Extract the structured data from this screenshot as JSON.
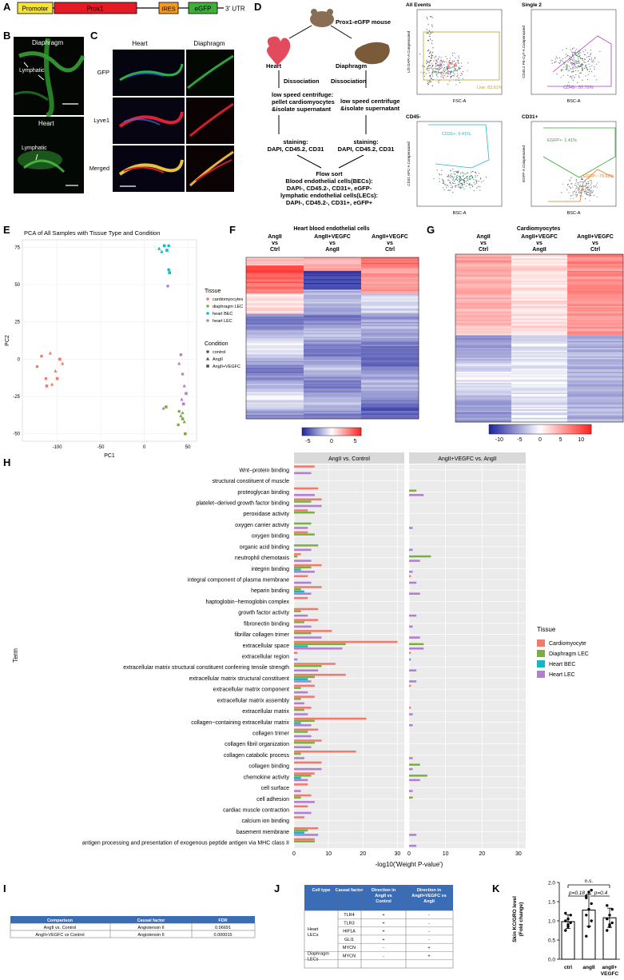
{
  "panels": {
    "A": "A",
    "B": "B",
    "C": "C",
    "D": "D",
    "E": "E",
    "F": "F",
    "G": "G",
    "H": "H",
    "I": "I",
    "J": "J",
    "K": "K"
  },
  "construct": {
    "promoter": "Promoter",
    "prox1": "Prox1",
    "ires": "IRES",
    "egfp": "eGFP",
    "utr": "3' UTR"
  },
  "panel_b": {
    "top_label": "Diaphragm",
    "top_annotation": "Lymphatic",
    "bottom_label": "Heart",
    "bottom_annotation": "Lymphatic"
  },
  "panel_c": {
    "col_heart": "Heart",
    "col_diaphragm": "Diaphragm",
    "rows": [
      "GFP",
      "Lyve1",
      "Merged"
    ]
  },
  "panel_d": {
    "mouse": "Prox1-eGFP mouse",
    "heart": "Heart",
    "diaphragm": "Diaphragm",
    "dissociation_left": "Dissociation",
    "dissociation_right": "Dissociation",
    "centrifuge_left": [
      "low speed centrifuge:",
      "pellet cardiomyocytes",
      "&isolate supernatant"
    ],
    "centrifuge_right": [
      "low speed centrifuge",
      "&isolate supernatant"
    ],
    "staining_left": [
      "staining:",
      "DAPI, CD45.2, CD31"
    ],
    "staining_right": [
      "staining:",
      "DAPI, CD45.2, CD31"
    ],
    "flow_sort": [
      "Flow sort",
      "Blood endothelial cells(BECs):",
      "DAPI-, CD45.2-, CD31+, eGFP-",
      "lymphatic endothelial cells(LECs):",
      "DAPI-, CD45.2-, CD31+, eGFP+"
    ],
    "facs": [
      {
        "title": "All Events",
        "gate": "Live: 82.61%",
        "xlabel": "FSC-A",
        "ylabel": "L/D DAPI-A Compensated"
      },
      {
        "title": "Single 2",
        "gate": "CD45-: 57.72%",
        "xlabel": "BSC-A",
        "ylabel": "CD45.2 PE-Cy7-A Compensated"
      },
      {
        "title": "CD45-",
        "gate": "CD31+: 9.41%",
        "xlabel": "BSC-A",
        "ylabel": "CD31 APC-A Compensated"
      },
      {
        "title": "CD31+",
        "gate": "EGFP+: 1.41%",
        "gate2": "EGFP-: 73.60%",
        "xlabel": "BSC-A",
        "ylabel": "EGFP-A Compensated"
      }
    ]
  },
  "panel_e": {
    "title": "PCA of All Samples with Tissue Type and Condition",
    "legend_tissue_title": "Tissue",
    "legend_condition_title": "Condition"
  },
  "panel_f": {
    "title": "Heart blood endothelial cells",
    "columns": [
      [
        "AngII",
        "vs",
        "Ctrl"
      ],
      [
        "AngII+VEGFC",
        "vs",
        "AngII"
      ],
      [
        "AngII+VEGFC",
        "vs",
        "Ctrl"
      ]
    ],
    "colorbar_ticks": [
      "-5",
      "0",
      "5"
    ]
  },
  "panel_g": {
    "title": "Cardiomyocytes",
    "columns": [
      [
        "AngII",
        "vs",
        "Ctrl"
      ],
      [
        "AngII+VEGFC",
        "vs",
        "AngII"
      ],
      [
        "AngII+VEGFC",
        "vs",
        "Ctrl"
      ]
    ],
    "colorbar_ticks": [
      "-10",
      "-5",
      "0",
      "5",
      "10"
    ]
  },
  "panel_i": {
    "headers": [
      "Comparison",
      "Causal factor",
      "FDR"
    ],
    "rows": [
      [
        "AngII vs. Control",
        "Angiotensin II",
        "0.06691"
      ],
      [
        "AngII+VEGFC vs Control",
        "Angiotensin II",
        "0.000015"
      ]
    ]
  },
  "panel_j": {
    "headers": [
      "Cell type",
      "Causal factor",
      "Direction in AngII vs Control",
      "Direction in AngII+VEGFC vs AngII"
    ],
    "groups": [
      {
        "cell_type": [
          "Heart",
          "LECs"
        ],
        "rows": [
          [
            "TLR4",
            "+",
            "-"
          ],
          [
            "TLR3",
            "+",
            "-"
          ],
          [
            "HIF1A",
            "+",
            "-"
          ],
          [
            "GLI1",
            "+",
            "-"
          ],
          [
            "MYCN",
            "-",
            "+"
          ]
        ]
      },
      {
        "cell_type": [
          "Diaphragm",
          "LECs"
        ],
        "rows": [
          [
            "MYCN",
            "-",
            "+"
          ]
        ]
      }
    ]
  },
  "panel_k": {
    "ylabel": [
      "Skin KC/GRO level",
      "(Fold change)"
    ],
    "ns": "n.s.",
    "p1": "p=0.18",
    "p2": "p=0.4",
    "categories": [
      "ctrl",
      "angII",
      "angII+",
      "VEGFC"
    ]
  },
  "chart_data": [
    {
      "id": "E",
      "type": "scatter",
      "title": "PCA of All Samples with Tissue Type and Condition",
      "xlabel": "PC1",
      "ylabel": "PC2",
      "xlim": [
        -140,
        60
      ],
      "ylim": [
        -55,
        80
      ],
      "xticks": [
        -100,
        -50,
        0,
        50
      ],
      "yticks": [
        -50,
        -25,
        0,
        25,
        50,
        75
      ],
      "legend": {
        "tissue": [
          {
            "name": "cardiomyocytes",
            "color": "#f07a6e"
          },
          {
            "name": "diaphragm LEC",
            "color": "#7cae3e"
          },
          {
            "name": "heart BEC",
            "color": "#16b7c4"
          },
          {
            "name": "heart LEC",
            "color": "#b07fd0"
          }
        ],
        "condition": [
          {
            "name": "control",
            "shape": "circle"
          },
          {
            "name": "AngII",
            "shape": "triangle"
          },
          {
            "name": "AngII+VEGFC",
            "shape": "square"
          }
        ]
      },
      "points": [
        {
          "x": -123,
          "y": -5,
          "tissue": "cardiomyocytes",
          "cond": "control"
        },
        {
          "x": -118,
          "y": 2,
          "tissue": "cardiomyocytes",
          "cond": "control"
        },
        {
          "x": -113,
          "y": -13,
          "tissue": "cardiomyocytes",
          "cond": "control"
        },
        {
          "x": -108,
          "y": 4,
          "tissue": "cardiomyocytes",
          "cond": "AngII"
        },
        {
          "x": -106,
          "y": -17,
          "tissue": "cardiomyocytes",
          "cond": "AngII"
        },
        {
          "x": -102,
          "y": -8,
          "tissue": "cardiomyocytes",
          "cond": "AngII"
        },
        {
          "x": -100,
          "y": -13,
          "tissue": "cardiomyocytes",
          "cond": "AngII+VEGFC"
        },
        {
          "x": -97,
          "y": 0,
          "tissue": "cardiomyocytes",
          "cond": "AngII+VEGFC"
        },
        {
          "x": -112,
          "y": -18,
          "tissue": "cardiomyocytes",
          "cond": "AngII+VEGFC"
        },
        {
          "x": -94,
          "y": -3,
          "tissue": "cardiomyocytes",
          "cond": "AngII"
        },
        {
          "x": 17,
          "y": 74,
          "tissue": "heart BEC",
          "cond": "AngII"
        },
        {
          "x": 20,
          "y": 72,
          "tissue": "heart BEC",
          "cond": "AngII"
        },
        {
          "x": 23,
          "y": 76,
          "tissue": "heart BEC",
          "cond": "AngII+VEGFC"
        },
        {
          "x": 26,
          "y": 73,
          "tissue": "heart BEC",
          "cond": "AngII+VEGFC"
        },
        {
          "x": 28,
          "y": 76,
          "tissue": "heart BEC",
          "cond": "control"
        },
        {
          "x": 28,
          "y": 60,
          "tissue": "heart BEC",
          "cond": "control"
        },
        {
          "x": 29,
          "y": 58,
          "tissue": "heart BEC",
          "cond": "AngII+VEGFC"
        },
        {
          "x": 27,
          "y": 49,
          "tissue": "heart LEC",
          "cond": "control"
        },
        {
          "x": 40,
          "y": -3,
          "tissue": "heart LEC",
          "cond": "AngII"
        },
        {
          "x": 42,
          "y": 3,
          "tissue": "heart LEC",
          "cond": "control"
        },
        {
          "x": 44,
          "y": -10,
          "tissue": "heart LEC",
          "cond": "control"
        },
        {
          "x": 46,
          "y": -18,
          "tissue": "heart LEC",
          "cond": "AngII"
        },
        {
          "x": 48,
          "y": -23,
          "tissue": "heart LEC",
          "cond": "AngII+VEGFC"
        },
        {
          "x": 43,
          "y": -27,
          "tissue": "heart LEC",
          "cond": "AngII"
        },
        {
          "x": 45,
          "y": -30,
          "tissue": "heart LEC",
          "cond": "AngII+VEGFC"
        },
        {
          "x": 22,
          "y": -33,
          "tissue": "heart LEC",
          "cond": "AngII"
        },
        {
          "x": 25,
          "y": -32,
          "tissue": "diaphragm LEC",
          "cond": "AngII+VEGFC"
        },
        {
          "x": 40,
          "y": -35,
          "tissue": "diaphragm LEC",
          "cond": "control"
        },
        {
          "x": 42,
          "y": -38,
          "tissue": "diaphragm LEC",
          "cond": "AngII"
        },
        {
          "x": 44,
          "y": -40,
          "tissue": "diaphragm LEC",
          "cond": "AngII+VEGFC"
        },
        {
          "x": 46,
          "y": -42,
          "tissue": "diaphragm LEC",
          "cond": "AngII"
        },
        {
          "x": 44,
          "y": -36,
          "tissue": "diaphragm LEC",
          "cond": "AngII"
        },
        {
          "x": 47,
          "y": -50,
          "tissue": "diaphragm LEC",
          "cond": "AngII+VEGFC"
        },
        {
          "x": 39,
          "y": -44,
          "tissue": "diaphragm LEC",
          "cond": "control"
        }
      ]
    },
    {
      "id": "H",
      "type": "bar",
      "orientation": "horizontal",
      "ylabel": "Term",
      "xlabel": "-log10('Weight P-value')",
      "xlim": [
        0,
        32
      ],
      "xticks": [
        0,
        10,
        20,
        30
      ],
      "facets": [
        "AngII vs. Control",
        "AngII+VEGFC vs. AngII"
      ],
      "legend_title": "Tissue",
      "tissues": [
        {
          "name": "Cardiomyocyte",
          "color": "#f07a6e"
        },
        {
          "name": "Diaphragm LEC",
          "color": "#7cae3e"
        },
        {
          "name": "Heart BEC",
          "color": "#16b7c4"
        },
        {
          "name": "Heart LEC",
          "color": "#b07fd0"
        }
      ],
      "terms": [
        "Wnt−protein binding",
        "structural constituent of muscle",
        "proteoglycan binding",
        "platelet−derived growth factor binding",
        "peroxidase activity",
        "oxygen carrier activity",
        "oxygen binding",
        "organic acid binding",
        "neutrophil chemotaxis",
        "integrin binding",
        "integral component of plasma membrane",
        "heparin binding",
        "haptoglobin−hemoglobin complex",
        "growth factor activity",
        "fibronectin binding",
        "fibrillar collagen trimer",
        "extracellular space",
        "extracellular region",
        "extracellular matrix structural constituent conferring tensile strength",
        "extracellular matrix structural constituent",
        "extracellular matrix component",
        "extracellular matrix assembly",
        "extracellular matrix",
        "collagen−containing extracellular matrix",
        "collagen trimer",
        "collagen fibril organization",
        "collagen catabolic process",
        "collagen binding",
        "chemokine activity",
        "cell surface",
        "cell adhesion",
        "cardiac muscle contraction",
        "calcium ion binding",
        "basement membrane",
        "antigen processing and presentation of exogenous peptide antigen via MHC class II"
      ],
      "values_facet1": [
        [
          6,
          0,
          0,
          5
        ],
        [
          0,
          0,
          0,
          0
        ],
        [
          7,
          0,
          0,
          6
        ],
        [
          8,
          5,
          0,
          8
        ],
        [
          4,
          6,
          0,
          0
        ],
        [
          0,
          5,
          0,
          4
        ],
        [
          4,
          6,
          0,
          0
        ],
        [
          0,
          7,
          0,
          5
        ],
        [
          2,
          1,
          0,
          5
        ],
        [
          8,
          5,
          2,
          6
        ],
        [
          4,
          0,
          0,
          5
        ],
        [
          8,
          2,
          3,
          5
        ],
        [
          4,
          0,
          0,
          0
        ],
        [
          7,
          2,
          0,
          4
        ],
        [
          7,
          3,
          0,
          5
        ],
        [
          11,
          5,
          0,
          8
        ],
        [
          30,
          15,
          4,
          14
        ],
        [
          1,
          0,
          0,
          1
        ],
        [
          12,
          8,
          0,
          7
        ],
        [
          15,
          6,
          4,
          5
        ],
        [
          6,
          2,
          0,
          4
        ],
        [
          6,
          2,
          0,
          3
        ],
        [
          5,
          3,
          0,
          4
        ],
        [
          21,
          6,
          2,
          5
        ],
        [
          7,
          4,
          0,
          5
        ],
        [
          8,
          6,
          0,
          5
        ],
        [
          18,
          2,
          0,
          3
        ],
        [
          8,
          0,
          0,
          8
        ],
        [
          6,
          5,
          2,
          4
        ],
        [
          4,
          0,
          0,
          2
        ],
        [
          5,
          2,
          0,
          6
        ],
        [
          4,
          0,
          0,
          5
        ],
        [
          3,
          0,
          0,
          0
        ],
        [
          7,
          4,
          3,
          7
        ],
        [
          6,
          6,
          0,
          0
        ]
      ],
      "values_facet2": [
        [
          0,
          0,
          0,
          0
        ],
        [
          0,
          0,
          0,
          0
        ],
        [
          0,
          2,
          0,
          4
        ],
        [
          0,
          0,
          0,
          0
        ],
        [
          0,
          0,
          0,
          0
        ],
        [
          0,
          0,
          0,
          1
        ],
        [
          0,
          0,
          0,
          0
        ],
        [
          0,
          0,
          0,
          1
        ],
        [
          0,
          6,
          0,
          3
        ],
        [
          0,
          0,
          0,
          1
        ],
        [
          0.5,
          0,
          0,
          2
        ],
        [
          0,
          0,
          0,
          3
        ],
        [
          0,
          0,
          0,
          0
        ],
        [
          0,
          0,
          0,
          2
        ],
        [
          0,
          0,
          0,
          1
        ],
        [
          0,
          0,
          0,
          3
        ],
        [
          0,
          4,
          0,
          4
        ],
        [
          0.5,
          0,
          0,
          0.5
        ],
        [
          0,
          0,
          0,
          2
        ],
        [
          0,
          0,
          0,
          2
        ],
        [
          0.5,
          0,
          0,
          0
        ],
        [
          0,
          0,
          0,
          0
        ],
        [
          0.5,
          0,
          0,
          1
        ],
        [
          0,
          0,
          0,
          1
        ],
        [
          0,
          0,
          0,
          0
        ],
        [
          0,
          0,
          0,
          0
        ],
        [
          0,
          0,
          0,
          1
        ],
        [
          0,
          3,
          0,
          1
        ],
        [
          0,
          5,
          0,
          3
        ],
        [
          0,
          0,
          0,
          1
        ],
        [
          0,
          1,
          0,
          0
        ],
        [
          0,
          0,
          0,
          0
        ],
        [
          0,
          0,
          0,
          0
        ],
        [
          0,
          0,
          0,
          2
        ],
        [
          0,
          0,
          0,
          2
        ]
      ]
    },
    {
      "id": "K",
      "type": "bar",
      "categories": [
        "ctrl",
        "angII",
        "angII+VEGFC"
      ],
      "values": [
        0.98,
        1.28,
        1.08
      ],
      "errors": [
        0.18,
        0.42,
        0.25
      ],
      "ylim": [
        0,
        2.0
      ],
      "yticks": [
        "0.0",
        "0.5",
        "1.0",
        "1.5",
        "2.0"
      ],
      "points": [
        [
          0.75,
          0.85,
          0.95,
          1.0,
          1.05,
          1.15,
          1.2,
          0.9
        ],
        [
          0.6,
          0.85,
          1.0,
          1.15,
          1.3,
          1.45,
          1.6,
          1.75,
          1.8,
          1.65
        ],
        [
          0.75,
          0.85,
          0.95,
          1.05,
          1.15,
          1.3,
          1.4,
          0.9
        ]
      ]
    }
  ]
}
